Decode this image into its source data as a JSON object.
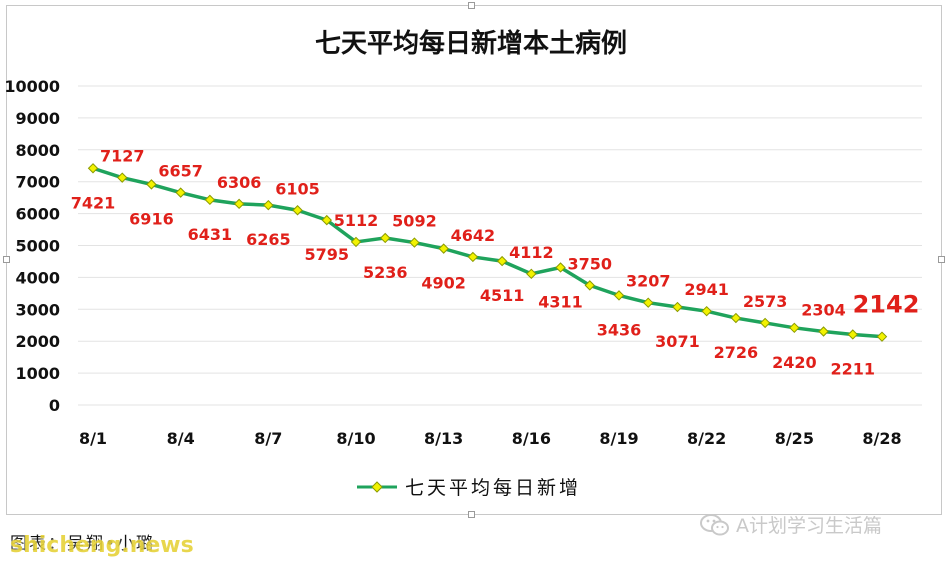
{
  "chart_data": {
    "type": "line",
    "title": "七天平均每日新增本土病例",
    "xlabel": "",
    "ylabel": "",
    "ylim": [
      0,
      10000
    ],
    "yticks": [
      0,
      1000,
      2000,
      3000,
      4000,
      5000,
      6000,
      7000,
      8000,
      9000,
      10000
    ],
    "categories": [
      "8/1",
      "8/2",
      "8/3",
      "8/4",
      "8/5",
      "8/6",
      "8/7",
      "8/8",
      "8/9",
      "8/10",
      "8/11",
      "8/12",
      "8/13",
      "8/14",
      "8/15",
      "8/16",
      "8/17",
      "8/18",
      "8/19",
      "8/20",
      "8/21",
      "8/22",
      "8/23",
      "8/24",
      "8/25",
      "8/26",
      "8/27",
      "8/28"
    ],
    "tick_labels": [
      "8/1",
      "8/4",
      "8/7",
      "8/10",
      "8/13",
      "8/16",
      "8/19",
      "8/22",
      "8/25",
      "8/28"
    ],
    "series": [
      {
        "name": "七天平均每日新增",
        "values": [
          7421,
          7127,
          6916,
          6657,
          6431,
          6306,
          6265,
          6105,
          5795,
          5112,
          5236,
          5092,
          4902,
          4642,
          4511,
          4112,
          4311,
          3750,
          3436,
          3207,
          3071,
          2941,
          2726,
          2573,
          2420,
          2304,
          2211,
          2142
        ],
        "label_positions": [
          "below",
          "above",
          "below",
          "above",
          "below",
          "above",
          "below",
          "above",
          "below",
          "above",
          "below",
          "above",
          "below",
          "above",
          "below",
          "above",
          "below",
          "above",
          "below",
          "above",
          "below",
          "above",
          "below",
          "above",
          "below",
          "above",
          "below",
          "above"
        ]
      }
    ],
    "grid": true,
    "legend": "bottom-center",
    "colors": {
      "line": "#1fa35c",
      "marker": "#f2f200",
      "marker_edge": "#8a9a00",
      "labels": "#e0201a",
      "grid": "#e3e3e3"
    },
    "highlight_last_label": true
  },
  "footer": {
    "credit": "图表：吴翔•小璐",
    "watermark": "shicheng.news",
    "account": "A计划学习生活篇",
    "icon": "wechat-icon"
  }
}
